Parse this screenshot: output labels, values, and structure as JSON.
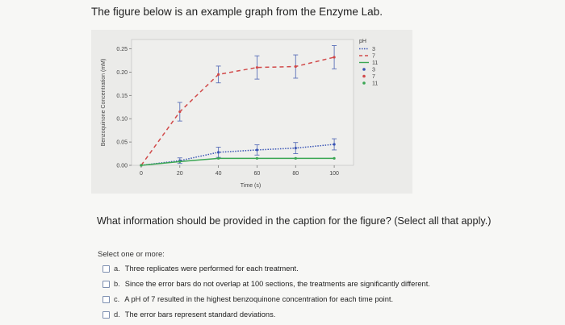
{
  "intro_text": "The figure below is an example graph from the Enzyme Lab.",
  "question_text": "What information should be provided in the caption for the figure? (Select all that apply.)",
  "select_hint": "Select one or more:",
  "options": [
    {
      "letter": "a.",
      "text": "Three replicates were performed for each treatment."
    },
    {
      "letter": "b.",
      "text": "Since the error bars do not overlap at 100 sections, the treatments are significantly different."
    },
    {
      "letter": "c.",
      "text": "A pH of 7 resulted in the highest benzoquinone concentration for each time point."
    },
    {
      "letter": "d.",
      "text": "The error bars represent standard deviations."
    }
  ],
  "chart_data": {
    "type": "line",
    "xlabel": "Time (s)",
    "ylabel": "Benzoquinone Concentration (mM)",
    "x_ticks": [
      "0",
      "20",
      "40",
      "60",
      "80",
      "100"
    ],
    "y_ticks": [
      "0.00",
      "0.05",
      "0.10",
      "0.15",
      "0.20",
      "0.25"
    ],
    "xlim": [
      -5,
      110
    ],
    "ylim": [
      0,
      0.27
    ],
    "legend_title": "pH",
    "legend_position": "right",
    "x": [
      0,
      20,
      40,
      60,
      80,
      100
    ],
    "series": [
      {
        "name": "3",
        "color": "#3a55b5",
        "style": "dotted",
        "values": [
          0.0,
          0.01,
          0.028,
          0.033,
          0.037,
          0.045
        ],
        "errors": [
          0.0,
          0.006,
          0.011,
          0.011,
          0.012,
          0.012
        ]
      },
      {
        "name": "7",
        "color": "#d14a4a",
        "style": "dashed",
        "values": [
          0.0,
          0.115,
          0.195,
          0.21,
          0.212,
          0.232
        ],
        "errors": [
          0.0,
          0.02,
          0.018,
          0.025,
          0.025,
          0.025
        ]
      },
      {
        "name": "11",
        "color": "#3aa653",
        "style": "solid",
        "values": [
          0.0,
          0.008,
          0.015,
          0.015,
          0.015,
          0.015
        ],
        "errors": [
          0.0,
          0.0,
          0.0,
          0.0,
          0.0,
          0.0
        ]
      }
    ],
    "legend": [
      {
        "label": "3",
        "color": "#3a55b5",
        "kind": "dotted-line"
      },
      {
        "label": "7",
        "color": "#d14a4a",
        "kind": "dashed-line"
      },
      {
        "label": "11",
        "color": "#3aa653",
        "kind": "solid-line"
      },
      {
        "label": "3",
        "color": "#3a55b5",
        "kind": "dot"
      },
      {
        "label": "7",
        "color": "#d14a4a",
        "kind": "dot"
      },
      {
        "label": "11",
        "color": "#3aa653",
        "kind": "dot"
      }
    ]
  }
}
